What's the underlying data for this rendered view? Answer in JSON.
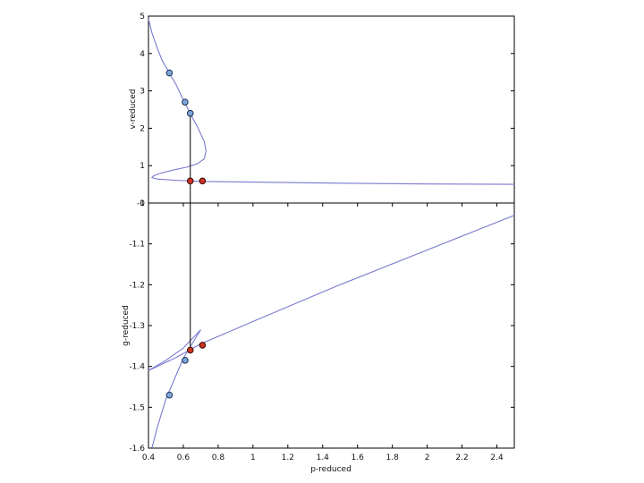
{
  "chart_data": [
    {
      "type": "line",
      "name": "top",
      "title": "",
      "xlabel": "",
      "ylabel": "v-reduced",
      "xlim": [
        0.4,
        2.5
      ],
      "ylim": [
        0,
        5
      ],
      "xticks": [],
      "yticks": [
        0,
        1,
        2,
        3,
        4,
        5
      ],
      "ytick_labels": [
        "0",
        "1",
        "2",
        "3",
        "4",
        "5"
      ],
      "series": [
        {
          "values": [
            [
              0.4,
              4.92
            ],
            [
              0.42,
              4.55
            ],
            [
              0.45,
              4.15
            ],
            [
              0.48,
              3.8
            ],
            [
              0.52,
              3.48
            ],
            [
              0.56,
              3.15
            ],
            [
              0.6,
              2.75
            ],
            [
              0.62,
              2.58
            ],
            [
              0.64,
              2.4
            ],
            [
              0.66,
              2.22
            ],
            [
              0.68,
              2.05
            ],
            [
              0.7,
              1.85
            ],
            [
              0.72,
              1.65
            ],
            [
              0.73,
              1.4
            ],
            [
              0.72,
              1.18
            ],
            [
              0.68,
              1.05
            ],
            [
              0.62,
              0.96
            ],
            [
              0.54,
              0.88
            ],
            [
              0.47,
              0.8
            ],
            [
              0.43,
              0.73
            ],
            [
              0.42,
              0.68
            ],
            [
              0.45,
              0.64
            ],
            [
              0.55,
              0.61
            ],
            [
              0.7,
              0.58
            ],
            [
              1.0,
              0.56
            ],
            [
              1.5,
              0.53
            ],
            [
              2.0,
              0.51
            ],
            [
              2.5,
              0.5
            ]
          ]
        }
      ],
      "points_blue": [
        [
          0.52,
          3.48
        ],
        [
          0.61,
          2.7
        ],
        [
          0.64,
          2.4
        ]
      ],
      "points_red": [
        [
          0.64,
          0.59
        ],
        [
          0.71,
          0.59
        ]
      ]
    },
    {
      "type": "line",
      "name": "bottom",
      "title": "",
      "xlabel": "p-reduced",
      "ylabel": "g-reduced",
      "xlim": [
        0.4,
        2.5
      ],
      "ylim": [
        -1.6,
        -1.0
      ],
      "xticks": [
        0.4,
        0.6,
        0.8,
        1.0,
        1.2,
        1.4,
        1.6,
        1.8,
        2.0,
        2.2,
        2.4
      ],
      "xtick_labels": [
        "0.4",
        "0.6",
        "0.8",
        "1",
        "1.2",
        "1.4",
        "1.6",
        "1.8",
        "2",
        "2.2",
        "2.4"
      ],
      "yticks": [
        -1.6,
        -1.5,
        -1.4,
        -1.3,
        -1.2,
        -1.1,
        -1.0
      ],
      "ytick_labels": [
        "-1.6",
        "-1.5",
        "-1.4",
        "-1.3",
        "-1.2",
        "-1.1",
        "-1"
      ],
      "series": [
        {
          "values": [
            [
              0.42,
              -1.6
            ],
            [
              0.45,
              -1.55
            ],
            [
              0.5,
              -1.48
            ],
            [
              0.55,
              -1.43
            ],
            [
              0.6,
              -1.38
            ],
            [
              0.65,
              -1.345
            ],
            [
              0.7,
              -1.31
            ]
          ]
        },
        {
          "values": [
            [
              0.7,
              -1.31
            ],
            [
              0.6,
              -1.355
            ],
            [
              0.5,
              -1.385
            ],
            [
              0.4,
              -1.41
            ]
          ]
        },
        {
          "values": [
            [
              0.4,
              -1.41
            ],
            [
              0.55,
              -1.38
            ],
            [
              0.7,
              -1.345
            ],
            [
              1.0,
              -1.29
            ],
            [
              1.5,
              -1.2
            ],
            [
              2.0,
              -1.115
            ],
            [
              2.5,
              -1.03
            ]
          ]
        }
      ],
      "points_blue": [
        [
          0.52,
          -1.47
        ],
        [
          0.61,
          -1.385
        ]
      ],
      "points_red": [
        [
          0.64,
          -1.36
        ],
        [
          0.71,
          -1.348
        ]
      ]
    }
  ],
  "tie_line": {
    "x": 0.64,
    "y_top": 2.4,
    "y_bottom": -1.36
  },
  "colors": {
    "curve": "#7a7ad0",
    "point_blue": "#7da7d9",
    "point_red": "#cc3322",
    "frame": "#000000"
  }
}
